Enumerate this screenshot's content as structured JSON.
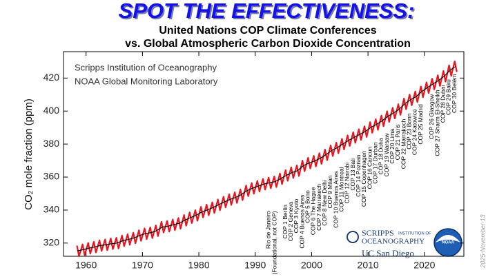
{
  "chart_data": {
    "type": "line",
    "title": "SPOT THE EFFECTIVENESS:",
    "subtitle": [
      "United Nations COP Climate Conferences",
      "vs. Global Atmospheric Carbon Dioxide Concentration"
    ],
    "y_label": "CO₂ mole fraction (ppm)",
    "credits": [
      "Scripps Institution of Oceanography",
      "NOAA Global Monitoring Laboratory"
    ],
    "logos": {
      "scripps": "SCRIPPS",
      "scripps_sub": "INSTITUTION OF",
      "scripps_sub2": "OCEANOGRAPHY",
      "ucsd": "UC San Diego",
      "noaa": "NOAA"
    },
    "date_stamp": "2025-November-13",
    "xlim": [
      1956,
      2027
    ],
    "xticks": [
      1960,
      1970,
      1980,
      1990,
      2000,
      2010,
      2020
    ],
    "ylim": [
      312,
      436
    ],
    "yticks": [
      320,
      340,
      360,
      380,
      400,
      420
    ],
    "series": [
      {
        "color": "#e8141e",
        "width": 2.2,
        "x": [
          1958.38,
          1958.75,
          1959.38,
          1959.75,
          1960.38,
          1960.75,
          1961.38,
          1961.75,
          1962.38,
          1962.75,
          1963.38,
          1963.75,
          1964.38,
          1964.75,
          1965.38,
          1965.75,
          1966.38,
          1966.75,
          1967.38,
          1967.75,
          1968.38,
          1968.75,
          1969.38,
          1969.75,
          1970.38,
          1970.75,
          1971.38,
          1971.75,
          1972.38,
          1972.75,
          1973.38,
          1973.75,
          1974.38,
          1974.75,
          1975.38,
          1975.75,
          1976.38,
          1976.75,
          1977.38,
          1977.75,
          1978.38,
          1978.75,
          1979.38,
          1979.75,
          1980.38,
          1980.75,
          1981.38,
          1981.75,
          1982.38,
          1982.75,
          1983.38,
          1983.75,
          1984.38,
          1984.75,
          1985.38,
          1985.75,
          1986.38,
          1986.75,
          1987.38,
          1987.75,
          1988.38,
          1988.75,
          1989.38,
          1989.75,
          1990.38,
          1990.75,
          1991.38,
          1991.75,
          1992.38,
          1992.75,
          1993.38,
          1993.75,
          1994.38,
          1994.75,
          1995.38,
          1995.75,
          1996.38,
          1996.75,
          1997.38,
          1997.75,
          1998.38,
          1998.75,
          1999.38,
          1999.75,
          2000.38,
          2000.75,
          2001.38,
          2001.75,
          2002.38,
          2002.75,
          2003.38,
          2003.75,
          2004.38,
          2004.75,
          2005.38,
          2005.75,
          2006.38,
          2006.75,
          2007.38,
          2007.75,
          2008.38,
          2008.75,
          2009.38,
          2009.75,
          2010.38,
          2010.75,
          2011.38,
          2011.75,
          2012.38,
          2012.75,
          2013.38,
          2013.75,
          2014.38,
          2014.75,
          2015.38,
          2015.75,
          2016.38,
          2016.75,
          2017.38,
          2017.75,
          2018.38,
          2018.75,
          2019.38,
          2019.75,
          2020.38,
          2020.75,
          2021.38,
          2021.75,
          2022.38,
          2022.75,
          2023.38,
          2023.75,
          2024.38,
          2024.75,
          2025.38,
          2025.75
        ],
        "values": [
          318.5,
          312.0,
          319.2,
          312.7,
          320.1,
          313.6,
          320.8,
          314.3,
          321.7,
          315.2,
          322.2,
          315.7,
          322.8,
          316.3,
          323.2,
          316.7,
          324.6,
          318.1,
          325.4,
          318.9,
          326.3,
          319.8,
          327.8,
          321.3,
          328.9,
          322.4,
          329.5,
          323.0,
          330.7,
          324.2,
          332.9,
          326.4,
          333.4,
          326.9,
          334.3,
          327.8,
          335.2,
          328.7,
          337.0,
          330.5,
          338.6,
          332.1,
          340.0,
          333.5,
          342.0,
          335.5,
          343.3,
          336.8,
          344.7,
          338.2,
          346.4,
          339.9,
          348.1,
          341.6,
          349.6,
          343.1,
          350.8,
          344.3,
          352.5,
          346.0,
          354.9,
          348.4,
          356.4,
          349.9,
          357.7,
          351.2,
          358.9,
          352.4,
          359.7,
          353.2,
          360.4,
          353.9,
          362.2,
          355.7,
          364.2,
          357.7,
          365.9,
          359.4,
          367.1,
          360.6,
          370.0,
          363.5,
          371.7,
          365.2,
          372.9,
          366.4,
          374.5,
          368.0,
          376.7,
          370.2,
          379.2,
          372.7,
          380.9,
          374.4,
          383.2,
          376.7,
          385.3,
          378.8,
          387.2,
          380.7,
          389.0,
          382.5,
          390.8,
          384.3,
          393.3,
          386.8,
          395.1,
          388.6,
          397.3,
          390.8,
          399.9,
          393.4,
          402.0,
          395.5,
          404.2,
          397.7,
          407.6,
          401.1,
          410.0,
          403.5,
          411.9,
          405.4,
          414.9,
          408.4,
          417.4,
          410.9,
          419.6,
          413.1,
          421.7,
          415.2,
          424.3,
          417.8,
          427.8,
          421.3,
          430.2,
          423.7
        ]
      },
      {
        "color": "#000000",
        "width": 1.2,
        "x": [
          1958.5,
          1959.5,
          1960.5,
          1961.5,
          1962.5,
          1963.5,
          1964.5,
          1965.5,
          1966.5,
          1967.5,
          1968.5,
          1969.5,
          1970.5,
          1971.5,
          1972.5,
          1973.5,
          1974.5,
          1975.5,
          1976.5,
          1977.5,
          1978.5,
          1979.5,
          1980.5,
          1981.5,
          1982.5,
          1983.5,
          1984.5,
          1985.5,
          1986.5,
          1987.5,
          1988.5,
          1989.5,
          1990.5,
          1991.5,
          1992.5,
          1993.5,
          1994.5,
          1995.5,
          1996.5,
          1997.5,
          1998.5,
          1999.5,
          2000.5,
          2001.5,
          2002.5,
          2003.5,
          2004.5,
          2005.5,
          2006.5,
          2007.5,
          2008.5,
          2009.5,
          2010.5,
          2011.5,
          2012.5,
          2013.5,
          2014.5,
          2015.5,
          2016.5,
          2017.5,
          2018.5,
          2019.5,
          2020.5,
          2021.5,
          2022.5,
          2023.5,
          2024.5,
          2025.5
        ],
        "values": [
          315.3,
          316.0,
          316.9,
          317.6,
          318.5,
          319.0,
          319.6,
          320.0,
          321.4,
          322.2,
          323.1,
          324.6,
          325.7,
          326.3,
          327.5,
          329.7,
          330.2,
          331.1,
          332.0,
          333.8,
          335.4,
          336.8,
          338.8,
          340.1,
          341.5,
          343.2,
          344.9,
          346.4,
          347.6,
          349.3,
          351.7,
          353.2,
          354.5,
          355.7,
          356.5,
          357.2,
          359.0,
          361.0,
          362.7,
          363.9,
          366.8,
          368.5,
          369.7,
          371.3,
          373.5,
          376.0,
          377.7,
          380.0,
          382.1,
          384.0,
          385.8,
          387.6,
          390.1,
          391.9,
          394.1,
          396.7,
          398.8,
          401.0,
          404.4,
          406.8,
          408.7,
          411.7,
          414.2,
          416.4,
          418.5,
          421.1,
          424.6,
          427.0
        ]
      }
    ],
    "annotations": [
      {
        "text": "Rio de Janeiro",
        "note": "(Foundational, not COP)",
        "x": 1992
      },
      {
        "text": "COP 1 Berlin",
        "x": 1995
      },
      {
        "text": "COP 2 Geneva",
        "x": 1996
      },
      {
        "text": "COP 3 Kyoto",
        "x": 1997
      },
      {
        "text": "COP 4 Buenos Aires",
        "x": 1998
      },
      {
        "text": "COP 5 Bonn",
        "x": 1999
      },
      {
        "text": "COP 6 The Hague",
        "x": 2000
      },
      {
        "text": "COP 7 Marrakech",
        "x": 2001
      },
      {
        "text": "COP 8 New Delhi",
        "x": 2002
      },
      {
        "text": "COP 9 Milan",
        "x": 2003
      },
      {
        "text": "COP 10 Buenos Aires",
        "x": 2004
      },
      {
        "text": "COP 11 Montreal",
        "x": 2005
      },
      {
        "text": "COP 12 Nairobi",
        "x": 2006
      },
      {
        "text": "COP 13 Bali",
        "x": 2007
      },
      {
        "text": "COP 14 Poznan",
        "x": 2008
      },
      {
        "text": "COP 15 Copenhagen",
        "x": 2009
      },
      {
        "text": "COP 16 Cancun",
        "x": 2010
      },
      {
        "text": "COP 17 Durban",
        "x": 2011
      },
      {
        "text": "COP 18 Doha",
        "x": 2012
      },
      {
        "text": "COP 19 Warsaw",
        "x": 2013
      },
      {
        "text": "COP 20 Lima",
        "x": 2014
      },
      {
        "text": "COP 21 Paris",
        "x": 2015
      },
      {
        "text": "COP 22 Marrakech",
        "x": 2016
      },
      {
        "text": "COP 23 Bonn",
        "x": 2017
      },
      {
        "text": "COP 24 Katowice",
        "x": 2018
      },
      {
        "text": "COP 25 Madrid",
        "x": 2019
      },
      {
        "text": "COP 26 Glasgow",
        "x": 2021
      },
      {
        "text": "COP 27 Sharm El-Sheikh",
        "x": 2022
      },
      {
        "text": "COP 28 Dubai",
        "x": 2023
      },
      {
        "text": "COP 29 Baku",
        "x": 2024
      },
      {
        "text": "COP 30 Belém",
        "x": 2025
      }
    ]
  }
}
